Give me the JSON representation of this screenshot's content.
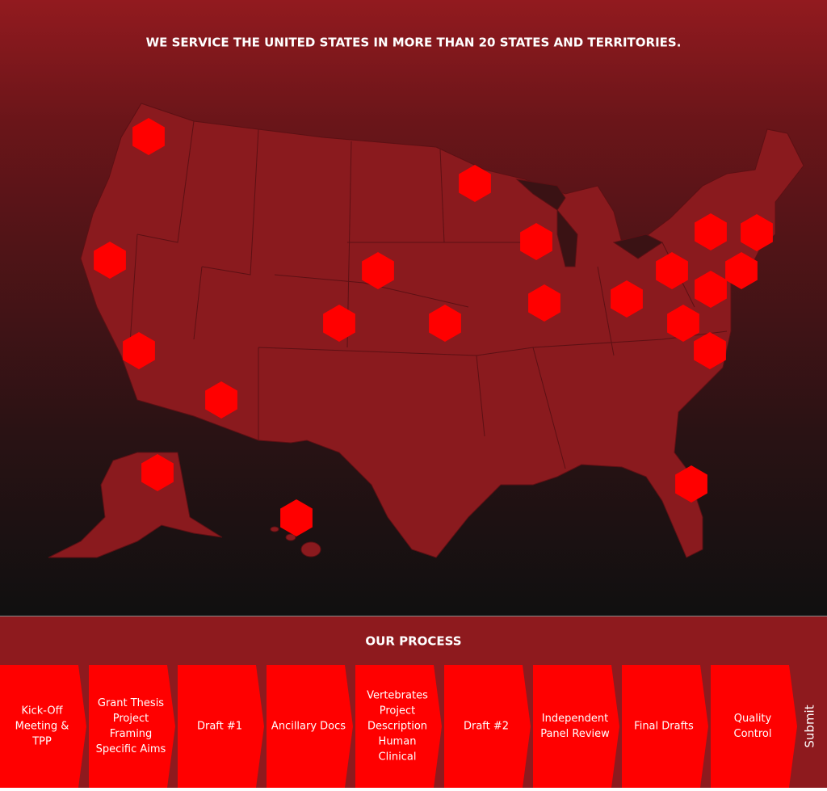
{
  "header": {
    "title": "WE SERVICE THE UNITED STATES IN MORE THAN 20 STATES AND TERRITORIES."
  },
  "process": {
    "title": "OUR PROCESS",
    "steps": [
      [
        "Kick-Off",
        "Meeting &",
        "TPP"
      ],
      [
        "Grant Thesis",
        "Project",
        "Framing",
        "Specific Aims"
      ],
      [
        "Draft #1"
      ],
      [
        "Ancillary Docs"
      ],
      [
        "Vertebrates",
        "Project",
        "Description",
        "Human",
        "Clinical"
      ],
      [
        "Draft #2"
      ],
      [
        "Independent",
        "Panel Review"
      ],
      [
        "Final Drafts"
      ],
      [
        "Quality",
        "Control"
      ]
    ],
    "final": "Submit"
  }
}
